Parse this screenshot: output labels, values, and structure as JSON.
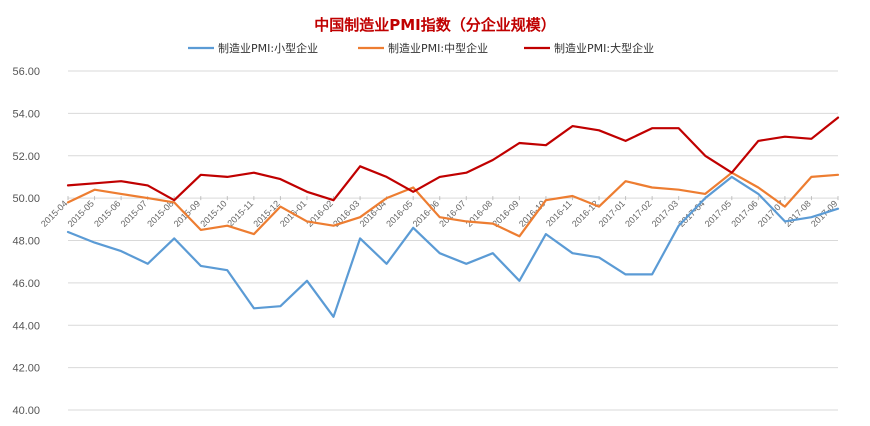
{
  "chart_data": {
    "type": "line",
    "title": "中国制造业PMI指数（分企业规模）",
    "ylim": [
      40,
      56
    ],
    "yticks": [
      "40.00",
      "42.00",
      "44.00",
      "46.00",
      "48.00",
      "50.00",
      "52.00",
      "54.00",
      "56.00"
    ],
    "grid": "horizontal",
    "legend_position": "top",
    "categories": [
      "2015-04",
      "2015-05",
      "2015-06",
      "2015-07",
      "2015-08",
      "2015-09",
      "2015-10",
      "2015-11",
      "2015-12",
      "2016-01",
      "2016-02",
      "2016-03",
      "2016-04",
      "2016-05",
      "2016-06",
      "2016-07",
      "2016-08",
      "2016-09",
      "2016-10",
      "2016-11",
      "2016-12",
      "2017-01",
      "2017-02",
      "2017-03",
      "2017-04",
      "2017-05",
      "2017-06",
      "2017-07",
      "2017-08",
      "2017-09"
    ],
    "series": [
      {
        "name": "制造业PMI:小型企业",
        "color": "#5b9bd5",
        "values": [
          48.4,
          47.9,
          47.5,
          46.9,
          48.1,
          46.8,
          46.6,
          44.8,
          44.9,
          46.1,
          44.4,
          48.1,
          46.9,
          48.6,
          47.4,
          46.9,
          47.4,
          46.1,
          48.3,
          47.4,
          47.2,
          46.4,
          46.4,
          48.7,
          50.0,
          51.0,
          50.2,
          48.9,
          49.1,
          49.5
        ]
      },
      {
        "name": "制造业PMI:中型企业",
        "color": "#ed7d31",
        "values": [
          49.8,
          50.4,
          50.2,
          50.0,
          49.8,
          48.5,
          48.7,
          48.3,
          49.6,
          48.9,
          48.7,
          49.1,
          50.0,
          50.5,
          49.1,
          48.9,
          48.8,
          48.2,
          49.9,
          50.1,
          49.6,
          50.8,
          50.5,
          50.4,
          50.2,
          51.2,
          50.5,
          49.6,
          51.0,
          51.1
        ]
      },
      {
        "name": "制造业PMI:大型企业",
        "color": "#c00000",
        "values": [
          50.6,
          50.7,
          50.8,
          50.6,
          49.9,
          51.1,
          51.0,
          51.2,
          50.9,
          50.3,
          49.9,
          51.5,
          51.0,
          50.3,
          51.0,
          51.2,
          51.8,
          52.6,
          52.5,
          53.4,
          53.2,
          52.7,
          53.3,
          53.3,
          52.0,
          51.2,
          52.7,
          52.9,
          52.8,
          53.8
        ]
      }
    ]
  },
  "colors": {
    "title": "#c00000",
    "grid": "#d9d9d9",
    "axis": "#bfbfbf"
  }
}
